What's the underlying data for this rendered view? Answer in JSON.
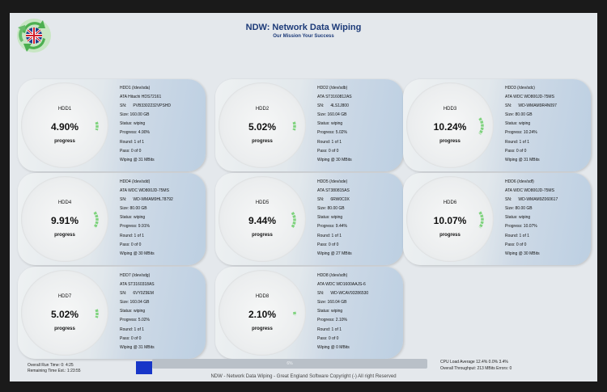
{
  "header": {
    "title": "NDW: Network Data Wiping",
    "subtitle": "Our Mission Your Success",
    "logo_icon": "uk-flag-recycle-icon"
  },
  "labels": {
    "progress": "progress",
    "sn": "SN:",
    "size": "Size:",
    "status": "Status:",
    "progress_field": "Progress:",
    "round": "Round:",
    "pass": "Pass:",
    "wiping": "Wiping @"
  },
  "drives": [
    {
      "name": "HDD1",
      "percent": "4.90%",
      "fraction": 0.049,
      "device": "HDD1 (/dev/sda)",
      "model": "ATA Hitachi HDS72161",
      "serial": "PVB3302232VPSHD",
      "size": "160.00 GB",
      "status": "wiping",
      "progress": "4.90%",
      "round": "1 of 1",
      "pass": "0 of 0",
      "speed": "31 MBits"
    },
    {
      "name": "HDD2",
      "percent": "5.02%",
      "fraction": 0.0502,
      "device": "HDD2 (/dev/sdb)",
      "model": "ATA ST3160812AS",
      "serial": "4LS1J800",
      "size": "160.04 GB",
      "status": "wiping",
      "progress": "5.02%",
      "round": "1 of 1",
      "pass": "0 of 0",
      "speed": "30 MBits"
    },
    {
      "name": "HDD3",
      "percent": "10.24%",
      "fraction": 0.1024,
      "device": "HDD3 (/dev/sdc)",
      "model": "ATA WDC WD800JD-75MS",
      "serial": "WD-WMAM9R4N097",
      "size": "80.00 GB",
      "status": "wiping",
      "progress": "10.24%",
      "round": "1 of 1",
      "pass": "0 of 0",
      "speed": "31 MBits"
    },
    {
      "name": "HDD4",
      "percent": "9.91%",
      "fraction": 0.0991,
      "device": "HDD4 (/dev/sdd)",
      "model": "ATA WDC WD800JD-75MS",
      "serial": "WD-WMAM9HL78792",
      "size": "80.00 GB",
      "status": "wiping",
      "progress": "9.91%",
      "round": "1 of 1",
      "pass": "0 of 0",
      "speed": "30 MBits"
    },
    {
      "name": "HDD5",
      "percent": "9.44%",
      "fraction": 0.0944,
      "device": "HDD5 (/dev/sde)",
      "model": "ATA ST380815AS",
      "serial": "6RW0C0X",
      "size": "80.00 GB",
      "status": "wiping",
      "progress": "9.44%",
      "round": "1 of 1",
      "pass": "0 of 0",
      "speed": "27 MBits"
    },
    {
      "name": "HDD6",
      "percent": "10.07%",
      "fraction": 0.1007,
      "device": "HDD6 (/dev/sdf)",
      "model": "ATA WDC WD800JD-75MS",
      "serial": "WD-WMAM9Z060617",
      "size": "80.00 GB",
      "status": "wiping",
      "progress": "10.07%",
      "round": "1 of 1",
      "pass": "0 of 0",
      "speed": "30 MBits"
    },
    {
      "name": "HDD7",
      "percent": "5.02%",
      "fraction": 0.0502,
      "device": "HDD7 (/dev/sdg)",
      "model": "ATA ST3160318AS",
      "serial": "6VY0Z9EM",
      "size": "160.04 GB",
      "status": "wiping",
      "progress": "5.02%",
      "round": "1 of 1",
      "pass": "0 of 0",
      "speed": "31 MBits"
    },
    {
      "name": "HDD8",
      "percent": "2.10%",
      "fraction": 0.021,
      "device": "HDD8 (/dev/sdh)",
      "model": "ATA WDC WD1600AAJS-6",
      "serial": "WD-WCAV93286530",
      "size": "160.04 GB",
      "status": "wiping",
      "progress": "2.10%",
      "round": "1 of 1",
      "pass": "0 of 0",
      "speed": "0 MBits"
    }
  ],
  "footer": {
    "run_time": "Overall Run Time:  0: 4:25",
    "remaining_time": "Remaining Time Est.:  1:23:55",
    "overall_bar_text": "6%",
    "overall_fraction": 0.06,
    "cpu_load": "CPU Load Average 12.4% 0.0% 3.4%",
    "throughput": "Overall Throughput: 213 MBits Errors: 0",
    "copyright": "NDW - Network Data Wiping - Great England Software Copyright (-) All right Reserved"
  },
  "colors": {
    "title": "#1c3a78",
    "gauge_arc": "#7fd37e",
    "bar_fill": "#1736c8"
  }
}
